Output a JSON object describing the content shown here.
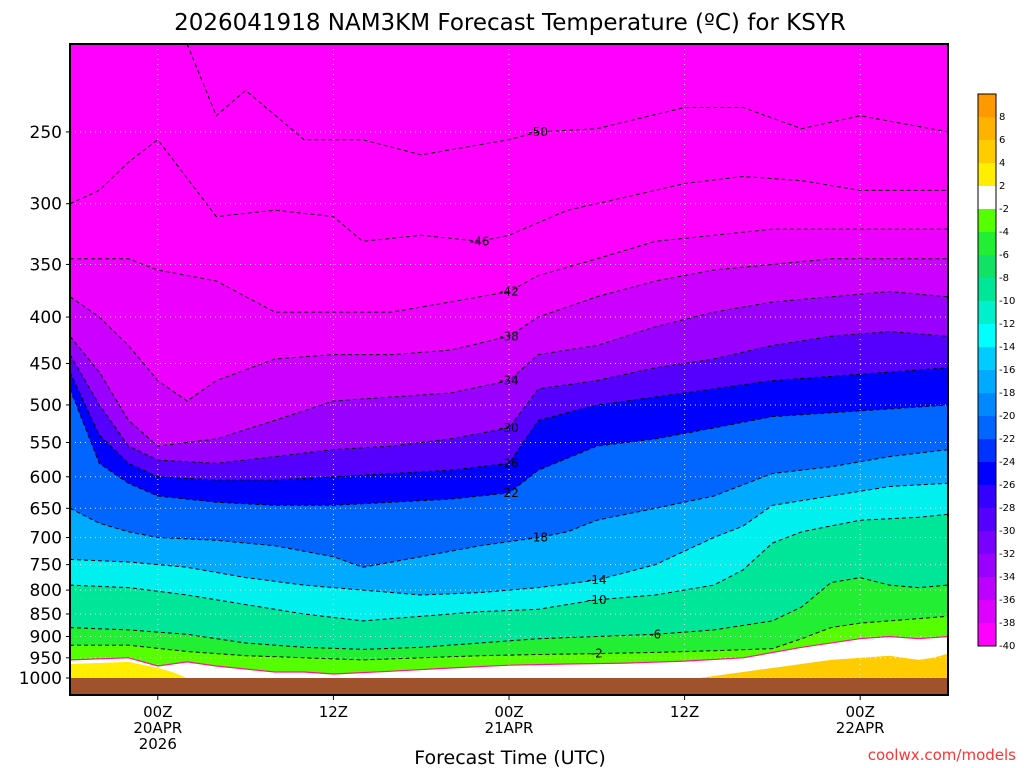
{
  "chart_data": {
    "type": "contour",
    "title": "2026041918 NAM3KM Forecast Temperature (ºC) for KSYR",
    "xlabel": "Forecast Time (UTC)",
    "credit": "coolwx.com/models",
    "x_range_hours": [
      -6,
      54
    ],
    "y_range_hpa": [
      1000,
      200
    ],
    "y_ticks": [
      250,
      300,
      350,
      400,
      450,
      500,
      550,
      600,
      650,
      700,
      750,
      800,
      850,
      900,
      950,
      1000
    ],
    "x_ticks": [
      {
        "hour": 0,
        "lines": [
          "00Z",
          "20APR",
          "2026"
        ]
      },
      {
        "hour": 12,
        "lines": [
          "12Z"
        ]
      },
      {
        "hour": 24,
        "lines": [
          "00Z",
          "21APR"
        ]
      },
      {
        "hour": 36,
        "lines": [
          "12Z"
        ]
      },
      {
        "hour": 48,
        "lines": [
          "00Z",
          "22APR"
        ]
      }
    ],
    "colorbar": [
      {
        "label": "8",
        "color": "#ff9900"
      },
      {
        "label": "6",
        "color": "#ffb300"
      },
      {
        "label": "4",
        "color": "#ffcc00"
      },
      {
        "label": "2",
        "color": "#ffee00"
      },
      {
        "label": "-2",
        "color": "#ffffff"
      },
      {
        "label": "-4",
        "color": "#55ff00"
      },
      {
        "label": "-6",
        "color": "#22ee33"
      },
      {
        "label": "-8",
        "color": "#11e266"
      },
      {
        "label": "-10",
        "color": "#00e699"
      },
      {
        "label": "-12",
        "color": "#00f0cc"
      },
      {
        "label": "-14",
        "color": "#00ffff"
      },
      {
        "label": "-16",
        "color": "#00ccff"
      },
      {
        "label": "-18",
        "color": "#00aaff"
      },
      {
        "label": "-20",
        "color": "#0088ff"
      },
      {
        "label": "-22",
        "color": "#0066ff"
      },
      {
        "label": "-24",
        "color": "#0033ff"
      },
      {
        "label": "-26",
        "color": "#0000ff"
      },
      {
        "label": "-28",
        "color": "#3300ff"
      },
      {
        "label": "-30",
        "color": "#5500ff"
      },
      {
        "label": "-32",
        "color": "#7700ff"
      },
      {
        "label": "-34",
        "color": "#9900ff"
      },
      {
        "label": "-36",
        "color": "#bb00ff"
      },
      {
        "label": "-38",
        "color": "#dd00ff"
      },
      {
        "label": "-40",
        "color": "#ff00ff"
      }
    ],
    "contours": [
      {
        "value": -50,
        "label": "-50",
        "points": [
          [
            2,
            200
          ],
          [
            4,
            240
          ],
          [
            6,
            225
          ],
          [
            10,
            255
          ],
          [
            14,
            255
          ],
          [
            18,
            265
          ],
          [
            24,
            255
          ],
          [
            26,
            250
          ],
          [
            30,
            248
          ],
          [
            36,
            235
          ],
          [
            40,
            235
          ],
          [
            44,
            248
          ],
          [
            48,
            240
          ],
          [
            54,
            250
          ]
        ]
      },
      {
        "value": -46,
        "label": "-46",
        "points": [
          [
            -6,
            300
          ],
          [
            -4,
            290
          ],
          [
            -2,
            270
          ],
          [
            0,
            255
          ],
          [
            4,
            310
          ],
          [
            8,
            305
          ],
          [
            12,
            310
          ],
          [
            14,
            330
          ],
          [
            18,
            325
          ],
          [
            22,
            330
          ],
          [
            24,
            325
          ],
          [
            28,
            305
          ],
          [
            32,
            295
          ],
          [
            36,
            285
          ],
          [
            40,
            280
          ],
          [
            44,
            283
          ],
          [
            48,
            290
          ],
          [
            54,
            290
          ]
        ]
      },
      {
        "value": -42,
        "label": "-42",
        "points": [
          [
            -6,
            345
          ],
          [
            -2,
            345
          ],
          [
            0,
            355
          ],
          [
            2,
            360
          ],
          [
            4,
            365
          ],
          [
            8,
            395
          ],
          [
            12,
            395
          ],
          [
            16,
            395
          ],
          [
            20,
            385
          ],
          [
            24,
            375
          ],
          [
            26,
            360
          ],
          [
            30,
            345
          ],
          [
            34,
            330
          ],
          [
            38,
            325
          ],
          [
            42,
            320
          ],
          [
            46,
            320
          ],
          [
            50,
            320
          ],
          [
            54,
            320
          ]
        ]
      },
      {
        "value": -38,
        "label": "-38",
        "points": [
          [
            -6,
            380
          ],
          [
            -4,
            400
          ],
          [
            -2,
            430
          ],
          [
            0,
            470
          ],
          [
            2,
            495
          ],
          [
            4,
            470
          ],
          [
            8,
            445
          ],
          [
            12,
            440
          ],
          [
            16,
            440
          ],
          [
            20,
            435
          ],
          [
            24,
            420
          ],
          [
            26,
            400
          ],
          [
            30,
            380
          ],
          [
            34,
            365
          ],
          [
            38,
            355
          ],
          [
            42,
            350
          ],
          [
            46,
            345
          ],
          [
            50,
            345
          ],
          [
            54,
            345
          ]
        ]
      },
      {
        "value": -34,
        "label": "-34",
        "points": [
          [
            -6,
            420
          ],
          [
            -4,
            460
          ],
          [
            -2,
            520
          ],
          [
            0,
            555
          ],
          [
            4,
            545
          ],
          [
            8,
            520
          ],
          [
            12,
            495
          ],
          [
            16,
            490
          ],
          [
            20,
            485
          ],
          [
            24,
            470
          ],
          [
            26,
            440
          ],
          [
            30,
            430
          ],
          [
            34,
            410
          ],
          [
            38,
            395
          ],
          [
            42,
            385
          ],
          [
            46,
            380
          ],
          [
            50,
            375
          ],
          [
            54,
            380
          ]
        ]
      },
      {
        "value": -30,
        "label": "-30",
        "points": [
          [
            -6,
            440
          ],
          [
            -4,
            500
          ],
          [
            -2,
            555
          ],
          [
            0,
            575
          ],
          [
            4,
            580
          ],
          [
            8,
            570
          ],
          [
            12,
            560
          ],
          [
            16,
            555
          ],
          [
            20,
            545
          ],
          [
            24,
            530
          ],
          [
            26,
            480
          ],
          [
            30,
            470
          ],
          [
            34,
            455
          ],
          [
            38,
            445
          ],
          [
            42,
            430
          ],
          [
            46,
            420
          ],
          [
            50,
            415
          ],
          [
            54,
            420
          ]
        ]
      },
      {
        "value": -26,
        "label": "-26",
        "points": [
          [
            -6,
            460
          ],
          [
            -4,
            540
          ],
          [
            -2,
            580
          ],
          [
            0,
            600
          ],
          [
            4,
            605
          ],
          [
            8,
            605
          ],
          [
            12,
            600
          ],
          [
            16,
            595
          ],
          [
            20,
            590
          ],
          [
            24,
            580
          ],
          [
            26,
            520
          ],
          [
            30,
            500
          ],
          [
            34,
            490
          ],
          [
            38,
            480
          ],
          [
            42,
            470
          ],
          [
            46,
            465
          ],
          [
            50,
            460
          ],
          [
            54,
            455
          ]
        ]
      },
      {
        "value": -22,
        "label": "-22",
        "points": [
          [
            -6,
            480
          ],
          [
            -4,
            580
          ],
          [
            -2,
            610
          ],
          [
            0,
            630
          ],
          [
            4,
            640
          ],
          [
            8,
            645
          ],
          [
            12,
            645
          ],
          [
            16,
            640
          ],
          [
            20,
            635
          ],
          [
            24,
            625
          ],
          [
            26,
            590
          ],
          [
            30,
            555
          ],
          [
            34,
            545
          ],
          [
            38,
            530
          ],
          [
            42,
            515
          ],
          [
            46,
            510
          ],
          [
            50,
            505
          ],
          [
            54,
            500
          ]
        ]
      },
      {
        "value": -18,
        "label": "-18",
        "points": [
          [
            -6,
            650
          ],
          [
            -4,
            675
          ],
          [
            -2,
            690
          ],
          [
            0,
            700
          ],
          [
            4,
            705
          ],
          [
            8,
            715
          ],
          [
            12,
            735
          ],
          [
            14,
            755
          ],
          [
            18,
            735
          ],
          [
            22,
            715
          ],
          [
            26,
            700
          ],
          [
            28,
            690
          ],
          [
            30,
            670
          ],
          [
            34,
            650
          ],
          [
            38,
            630
          ],
          [
            42,
            595
          ],
          [
            46,
            585
          ],
          [
            50,
            570
          ],
          [
            54,
            560
          ]
        ]
      },
      {
        "value": -14,
        "label": "-14",
        "points": [
          [
            -6,
            740
          ],
          [
            -2,
            745
          ],
          [
            2,
            755
          ],
          [
            6,
            775
          ],
          [
            10,
            790
          ],
          [
            14,
            800
          ],
          [
            18,
            810
          ],
          [
            22,
            805
          ],
          [
            26,
            795
          ],
          [
            30,
            780
          ],
          [
            34,
            750
          ],
          [
            38,
            700
          ],
          [
            40,
            680
          ],
          [
            42,
            645
          ],
          [
            46,
            630
          ],
          [
            50,
            615
          ],
          [
            54,
            610
          ]
        ]
      },
      {
        "value": -10,
        "label": "-10",
        "points": [
          [
            -6,
            790
          ],
          [
            -2,
            795
          ],
          [
            2,
            810
          ],
          [
            6,
            830
          ],
          [
            10,
            850
          ],
          [
            14,
            865
          ],
          [
            18,
            855
          ],
          [
            22,
            845
          ],
          [
            26,
            840
          ],
          [
            30,
            820
          ],
          [
            34,
            810
          ],
          [
            38,
            790
          ],
          [
            40,
            760
          ],
          [
            42,
            710
          ],
          [
            44,
            690
          ],
          [
            48,
            670
          ],
          [
            52,
            665
          ],
          [
            54,
            660
          ]
        ]
      },
      {
        "value": -6,
        "label": "-6",
        "points": [
          [
            -6,
            880
          ],
          [
            -2,
            885
          ],
          [
            2,
            895
          ],
          [
            6,
            915
          ],
          [
            10,
            925
          ],
          [
            14,
            930
          ],
          [
            18,
            925
          ],
          [
            22,
            915
          ],
          [
            26,
            905
          ],
          [
            30,
            900
          ],
          [
            34,
            895
          ],
          [
            38,
            885
          ],
          [
            42,
            865
          ],
          [
            44,
            835
          ],
          [
            46,
            785
          ],
          [
            48,
            775
          ],
          [
            50,
            790
          ],
          [
            52,
            795
          ],
          [
            54,
            790
          ]
        ]
      },
      {
        "value": -2,
        "label": "-2",
        "points": [
          [
            -6,
            920
          ],
          [
            -2,
            920
          ],
          [
            2,
            935
          ],
          [
            6,
            945
          ],
          [
            10,
            950
          ],
          [
            14,
            955
          ],
          [
            18,
            950
          ],
          [
            22,
            945
          ],
          [
            26,
            942
          ],
          [
            30,
            940
          ],
          [
            34,
            937
          ],
          [
            38,
            933
          ],
          [
            42,
            928
          ],
          [
            44,
            905
          ],
          [
            46,
            880
          ],
          [
            48,
            870
          ],
          [
            50,
            865
          ],
          [
            54,
            855
          ]
        ]
      }
    ],
    "freezing_line": [
      [
        -6,
        955
      ],
      [
        -2,
        950
      ],
      [
        0,
        970
      ],
      [
        2,
        960
      ],
      [
        4,
        970
      ],
      [
        8,
        985
      ],
      [
        10,
        985
      ],
      [
        12,
        990
      ],
      [
        16,
        983
      ],
      [
        20,
        975
      ],
      [
        24,
        968
      ],
      [
        28,
        965
      ],
      [
        32,
        963
      ],
      [
        36,
        958
      ],
      [
        40,
        950
      ],
      [
        44,
        925
      ],
      [
        48,
        905
      ],
      [
        50,
        900
      ],
      [
        52,
        905
      ],
      [
        54,
        900
      ]
    ],
    "warm_region": [
      [
        -6,
        1000
      ],
      [
        -6,
        965
      ],
      [
        -2,
        960
      ],
      [
        0,
        975
      ],
      [
        1,
        985
      ],
      [
        2,
        1000
      ]
    ],
    "warm_region2": [
      [
        37,
        1000
      ],
      [
        42,
        975
      ],
      [
        46,
        955
      ],
      [
        50,
        945
      ],
      [
        52,
        955
      ],
      [
        53,
        950
      ],
      [
        54,
        940
      ],
      [
        54,
        1000
      ]
    ]
  }
}
